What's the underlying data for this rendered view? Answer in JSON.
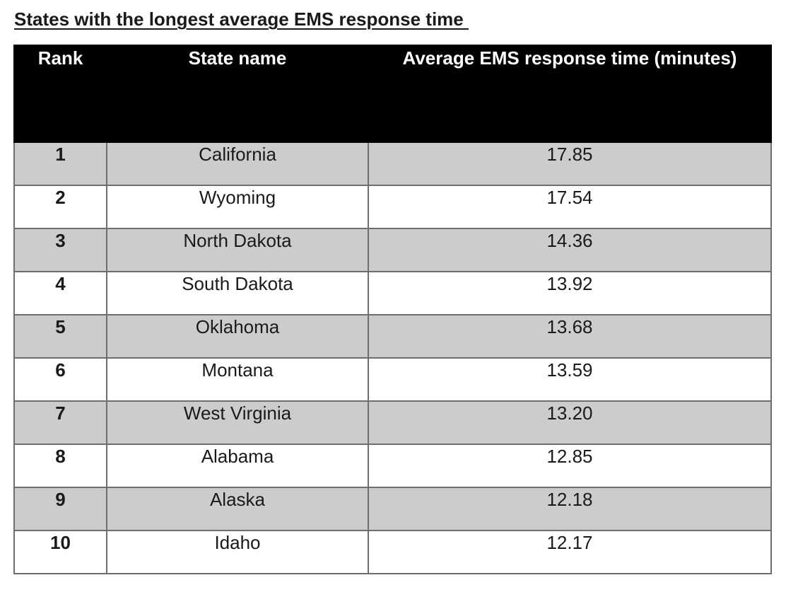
{
  "title": "States with the longest average EMS response time ",
  "table": {
    "headers": {
      "rank": "Rank",
      "state": "State name",
      "time": "Average EMS response time (minutes)"
    },
    "rows": [
      {
        "rank": "1",
        "state": "California",
        "time": "17.85"
      },
      {
        "rank": "2",
        "state": "Wyoming",
        "time": "17.54"
      },
      {
        "rank": "3",
        "state": "North Dakota",
        "time": "14.36"
      },
      {
        "rank": "4",
        "state": "South Dakota",
        "time": "13.92"
      },
      {
        "rank": "5",
        "state": "Oklahoma",
        "time": "13.68"
      },
      {
        "rank": "6",
        "state": "Montana",
        "time": "13.59"
      },
      {
        "rank": "7",
        "state": "West Virginia",
        "time": "13.20"
      },
      {
        "rank": "8",
        "state": "Alabama",
        "time": "12.85"
      },
      {
        "rank": "9",
        "state": "Alaska",
        "time": "12.18"
      },
      {
        "rank": "10",
        "state": "Idaho",
        "time": "12.17"
      }
    ]
  },
  "colors": {
    "header_bg": "#000000",
    "header_text": "#ffffff",
    "shaded_row": "#cccccc",
    "plain_row": "#ffffff"
  }
}
